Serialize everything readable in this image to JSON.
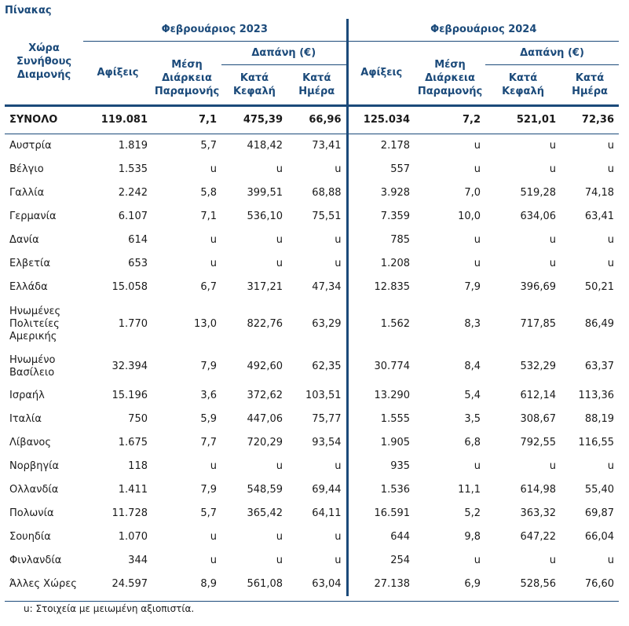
{
  "title": "Πίνακας",
  "header": {
    "country_col": "Χώρα Συνήθους Διαμονής",
    "period_2023": "Φεβρουάριος 2023",
    "period_2024": "Φεβρουάριος 2024",
    "arrivals": "Αφίξεις",
    "avg_stay": "Μέση Διάρκεια Παραμονής",
    "spending": "Δαπάνη (€)",
    "per_capita": "Κατά Κεφαλή",
    "per_day": "Κατά Ημέρα"
  },
  "total": {
    "label": "ΣΥΝΟΛΟ",
    "a23": "119.081",
    "s23": "7,1",
    "pc23": "475,39",
    "pd23": "66,96",
    "a24": "125.034",
    "s24": "7,2",
    "pc24": "521,01",
    "pd24": "72,36"
  },
  "rows": [
    {
      "country": "Αυστρία",
      "a23": "1.819",
      "s23": "5,7",
      "pc23": "418,42",
      "pd23": "73,41",
      "a24": "2.178",
      "s24": "u",
      "pc24": "u",
      "pd24": "u"
    },
    {
      "country": "Βέλγιο",
      "a23": "1.535",
      "s23": "u",
      "pc23": "u",
      "pd23": "u",
      "a24": "557",
      "s24": "u",
      "pc24": "u",
      "pd24": "u"
    },
    {
      "country": "Γαλλία",
      "a23": "2.242",
      "s23": "5,8",
      "pc23": "399,51",
      "pd23": "68,88",
      "a24": "3.928",
      "s24": "7,0",
      "pc24": "519,28",
      "pd24": "74,18"
    },
    {
      "country": "Γερμανία",
      "a23": "6.107",
      "s23": "7,1",
      "pc23": "536,10",
      "pd23": "75,51",
      "a24": "7.359",
      "s24": "10,0",
      "pc24": "634,06",
      "pd24": "63,41"
    },
    {
      "country": "Δανία",
      "a23": "614",
      "s23": "u",
      "pc23": "u",
      "pd23": "u",
      "a24": "785",
      "s24": "u",
      "pc24": "u",
      "pd24": "u"
    },
    {
      "country": "Ελβετία",
      "a23": "653",
      "s23": "u",
      "pc23": "u",
      "pd23": "u",
      "a24": "1.208",
      "s24": "u",
      "pc24": "u",
      "pd24": "u"
    },
    {
      "country": "Ελλάδα",
      "a23": "15.058",
      "s23": "6,7",
      "pc23": "317,21",
      "pd23": "47,34",
      "a24": "12.835",
      "s24": "7,9",
      "pc24": "396,69",
      "pd24": "50,21"
    },
    {
      "country": "Ηνωμένες Πολιτείες Αμερικής",
      "a23": "1.770",
      "s23": "13,0",
      "pc23": "822,76",
      "pd23": "63,29",
      "a24": "1.562",
      "s24": "8,3",
      "pc24": "717,85",
      "pd24": "86,49"
    },
    {
      "country": "Ηνωμένο Βασίλειο",
      "a23": "32.394",
      "s23": "7,9",
      "pc23": "492,60",
      "pd23": "62,35",
      "a24": "30.774",
      "s24": "8,4",
      "pc24": "532,29",
      "pd24": "63,37"
    },
    {
      "country": "Ισραήλ",
      "a23": "15.196",
      "s23": "3,6",
      "pc23": "372,62",
      "pd23": "103,51",
      "a24": "13.290",
      "s24": "5,4",
      "pc24": "612,14",
      "pd24": "113,36"
    },
    {
      "country": "Ιταλία",
      "a23": "750",
      "s23": "5,9",
      "pc23": "447,06",
      "pd23": "75,77",
      "a24": "1.555",
      "s24": "3,5",
      "pc24": "308,67",
      "pd24": "88,19"
    },
    {
      "country": "Λίβανος",
      "a23": "1.675",
      "s23": "7,7",
      "pc23": "720,29",
      "pd23": "93,54",
      "a24": "1.905",
      "s24": "6,8",
      "pc24": "792,55",
      "pd24": "116,55"
    },
    {
      "country": "Νορβηγία",
      "a23": "118",
      "s23": "u",
      "pc23": "u",
      "pd23": "u",
      "a24": "935",
      "s24": "u",
      "pc24": "u",
      "pd24": "u"
    },
    {
      "country": "Ολλανδία",
      "a23": "1.411",
      "s23": "7,9",
      "pc23": "548,59",
      "pd23": "69,44",
      "a24": "1.536",
      "s24": "11,1",
      "pc24": "614,98",
      "pd24": "55,40"
    },
    {
      "country": "Πολωνία",
      "a23": "11.728",
      "s23": "5,7",
      "pc23": "365,42",
      "pd23": "64,11",
      "a24": "16.591",
      "s24": "5,2",
      "pc24": "363,32",
      "pd24": "69,87"
    },
    {
      "country": "Σουηδία",
      "a23": "1.070",
      "s23": "u",
      "pc23": "u",
      "pd23": "u",
      "a24": "644",
      "s24": "9,8",
      "pc24": "647,22",
      "pd24": "66,04"
    },
    {
      "country": "Φινλανδία",
      "a23": "344",
      "s23": "u",
      "pc23": "u",
      "pd23": "u",
      "a24": "254",
      "s24": "u",
      "pc24": "u",
      "pd24": "u"
    },
    {
      "country": "Άλλες Χώρες",
      "a23": "24.597",
      "s23": "8,9",
      "pc23": "561,08",
      "pd23": "63,04",
      "a24": "27.138",
      "s24": "6,9",
      "pc24": "528,56",
      "pd24": "76,60"
    }
  ],
  "footnote": "u:  Στοιχεία με μειωμένη αξιοπιστία."
}
